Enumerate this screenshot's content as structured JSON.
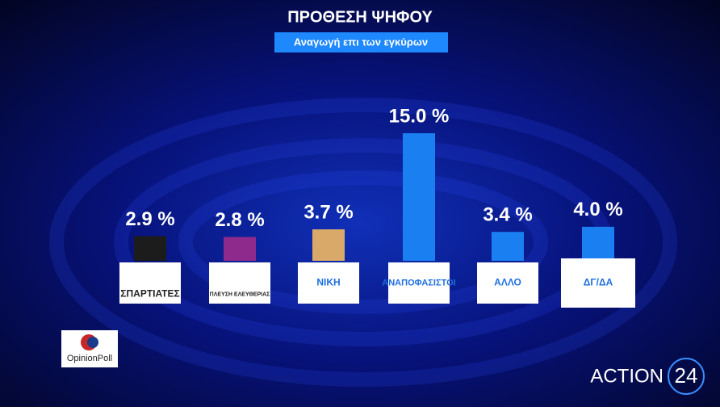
{
  "chart_data": {
    "type": "bar",
    "title": "ΠΡΟΘΕΣΗ ΨΗΦΟΥ",
    "subtitle": "Αναγωγή επι των εγκύρων",
    "categories": [
      "ΣΠΑΡΤΙΑΤΕΣ",
      "ΠΛΕΥΣΗ ΕΛΕΥΘΕΡΙΑΣ",
      "ΝΙΚΗ",
      "ΑΝΑΠΟΦΑΣΙΣΤΟΙ",
      "ΑΛΛΟ",
      "ΔΓ/ΔΑ"
    ],
    "values": [
      2.9,
      2.8,
      3.7,
      15.0,
      3.4,
      4.0
    ],
    "value_labels": [
      "2.9 %",
      "2.8 %",
      "3.7 %",
      "15.0 %",
      "3.4 %",
      "4.0 %"
    ],
    "colors": [
      "#1c1c1c",
      "#8e2a8c",
      "#d9a96a",
      "#1a7ff0",
      "#1a7ff0",
      "#1a7ff0"
    ]
  },
  "logos": {
    "poll": "OpinionPoll",
    "channel_name": "ACTION",
    "channel_number": "24"
  }
}
